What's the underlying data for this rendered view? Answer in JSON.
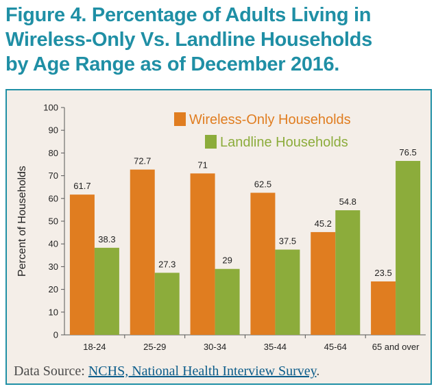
{
  "title_lines": [
    "Figure 4. Percentage of Adults Living in",
    "Wireless-Only Vs. Landline Households",
    "by Age Range as of December 2016."
  ],
  "source": {
    "prefix": "Data Source: ",
    "link_text": "NCHS, National Health Interview Survey",
    "suffix": "."
  },
  "colors": {
    "title": "#1f8fa5",
    "wireless": "#e07d20",
    "landline": "#8cac3b",
    "panel_bg": "#f4eee8"
  },
  "chart_data": {
    "type": "bar",
    "categories": [
      "18-24",
      "25-29",
      "30-34",
      "35-44",
      "45-64",
      "65 and over"
    ],
    "series": [
      {
        "name": "Wireless-Only Households",
        "values": [
          61.7,
          72.7,
          71,
          62.5,
          45.2,
          23.5
        ],
        "labels": [
          "61.7",
          "72.7",
          "71",
          "62.5",
          "45.2",
          "23.5"
        ],
        "color": "#e07d20"
      },
      {
        "name": "Landline Households",
        "values": [
          38.3,
          27.3,
          29,
          37.5,
          54.8,
          76.5
        ],
        "labels": [
          "38.3",
          "27.3",
          "29",
          "37.5",
          "54.8",
          "76.5"
        ],
        "color": "#8cac3b"
      }
    ],
    "ylabel": "Percent of Households",
    "xlabel": "",
    "ylim": [
      0,
      100
    ],
    "yticks": [
      0,
      10,
      20,
      30,
      40,
      50,
      60,
      70,
      80,
      90,
      100
    ],
    "grid": false,
    "legend_position": "top-right"
  }
}
